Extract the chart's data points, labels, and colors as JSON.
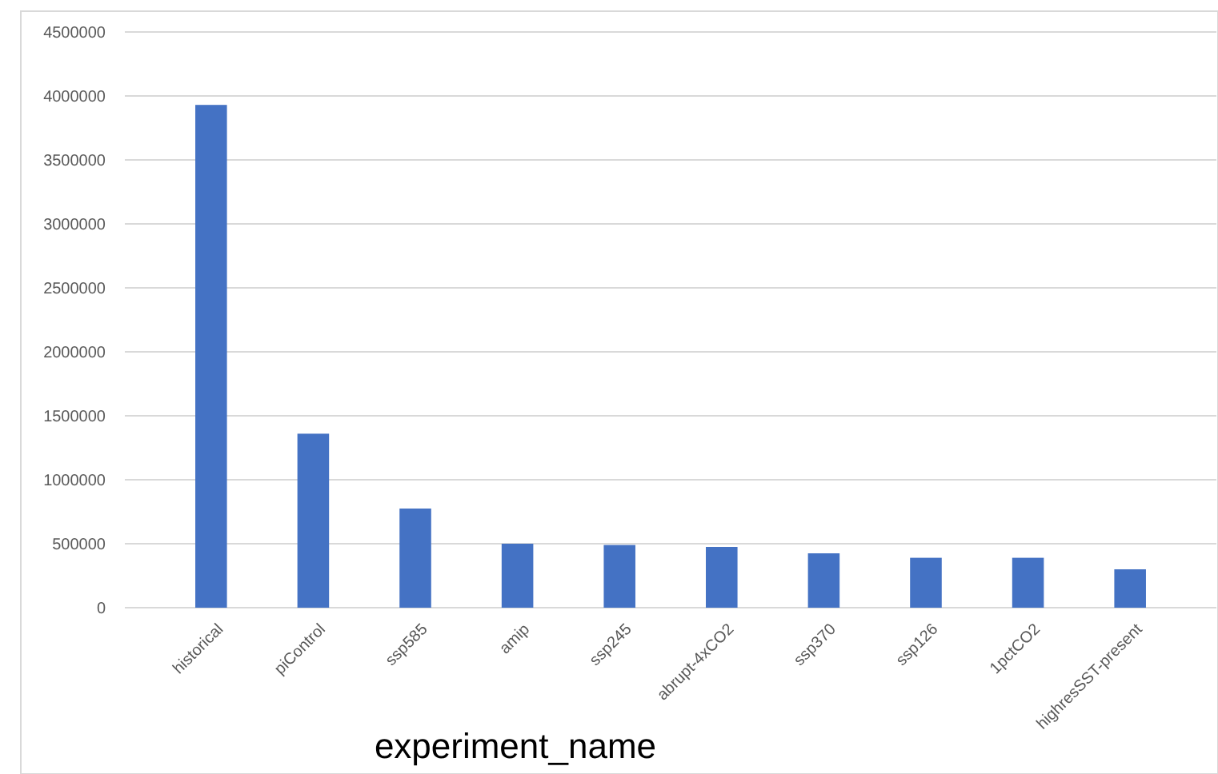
{
  "chart_data": {
    "type": "bar",
    "xlabel": "experiment_name",
    "categories": [
      "historical",
      "piControl",
      "ssp585",
      "amip",
      "ssp245",
      "abrupt-4xCO2",
      "ssp370",
      "ssp126",
      "1pctCO2",
      "highresSST-present"
    ],
    "values": [
      3930000,
      1360000,
      775000,
      500000,
      490000,
      475000,
      425000,
      390000,
      390000,
      300000
    ],
    "color": "#4472c4",
    "ylim": [
      0,
      4500000
    ],
    "yticks": [
      0,
      500000,
      1000000,
      1500000,
      2000000,
      2500000,
      3000000,
      3500000,
      4000000,
      4500000
    ],
    "grid": "y"
  }
}
